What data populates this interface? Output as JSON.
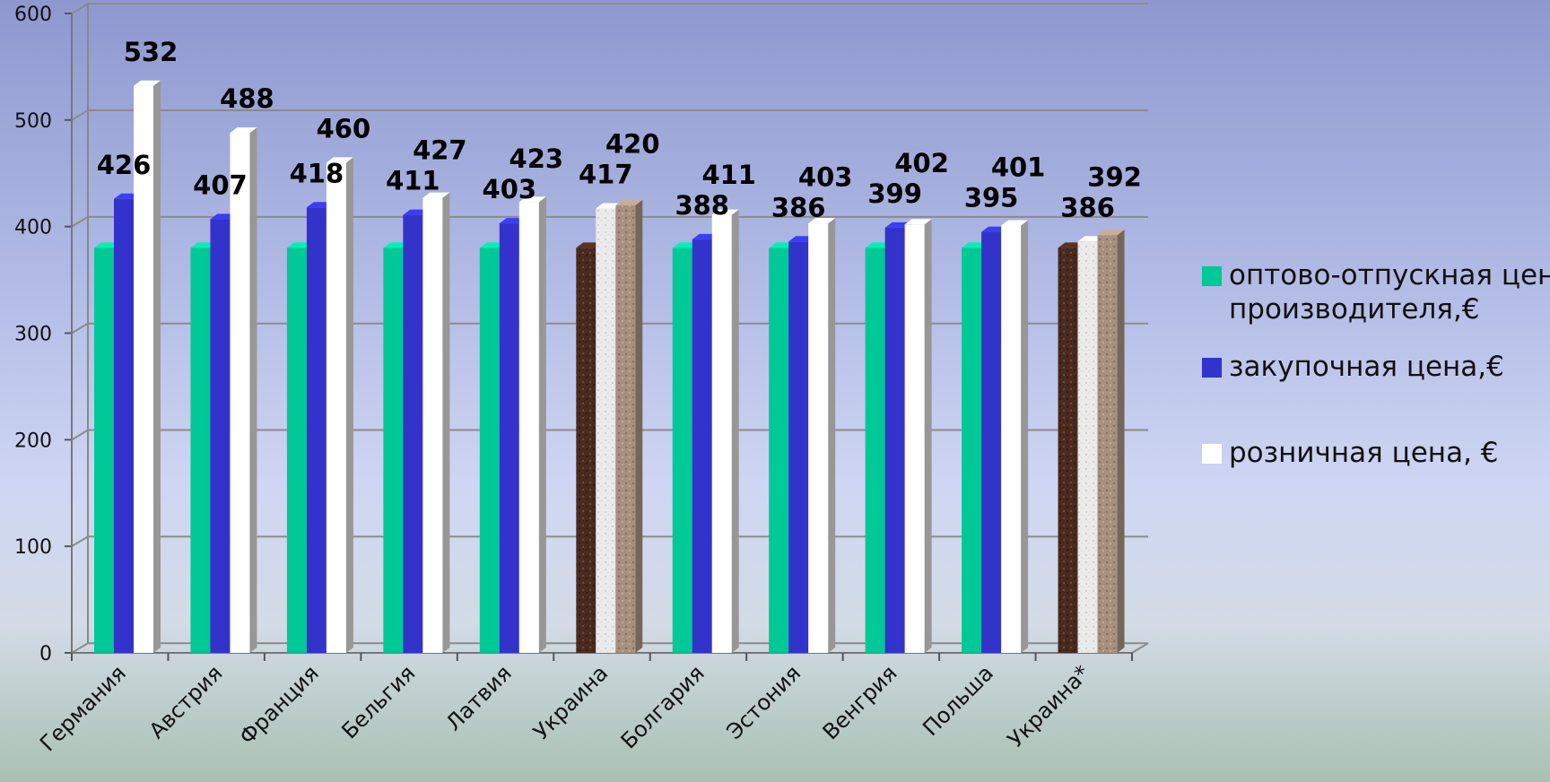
{
  "chart_data": {
    "type": "bar",
    "title": "",
    "xlabel": "",
    "ylabel": "",
    "ylim": [
      0,
      600
    ],
    "yticks": [
      "0",
      "100",
      "200",
      "300",
      "400",
      "500",
      "600"
    ],
    "grid": true,
    "legend_position": "right",
    "categories": [
      "Германия",
      "Австрия",
      "Франция",
      "Бельгия",
      "Латвия",
      "Украина",
      "Болгария",
      "Эстония",
      "Венгрия",
      "Польша",
      "Украина*"
    ],
    "series": [
      {
        "name": "оптово-отпускная цена производителя,€",
        "values": [
          380,
          380,
          380,
          380,
          380,
          380,
          380,
          380,
          380,
          380,
          380
        ],
        "labels": [
          null,
          null,
          null,
          null,
          null,
          null,
          null,
          null,
          null,
          null,
          null
        ],
        "color": "#00c896",
        "highlight_color": "#4a2a1e"
      },
      {
        "name": "закупочная цена,€",
        "values": [
          426,
          407,
          418,
          411,
          403,
          417,
          388,
          386,
          399,
          395,
          386
        ],
        "labels": [
          "426",
          "407",
          "418",
          "411",
          "403",
          "417",
          "388",
          "386",
          "399",
          "395",
          "386"
        ],
        "color": "#3333cc",
        "highlight_color": "#ebebeb"
      },
      {
        "name": "розничная цена, €",
        "values": [
          532,
          488,
          460,
          427,
          423,
          420,
          411,
          403,
          402,
          401,
          392
        ],
        "labels": [
          "532",
          "488",
          "460",
          "427",
          "423",
          "420",
          "411",
          "403",
          "402",
          "401",
          "392"
        ],
        "color": "#ffffff",
        "highlight_color": "#a8907e"
      }
    ],
    "highlight_categories": [
      "Украина",
      "Украина*"
    ]
  },
  "legend": {
    "items": [
      {
        "line1": "оптово-отпускная цена",
        "line2": "производителя,€",
        "color": "#00c896"
      },
      {
        "line1": "закупочная цена,€",
        "line2": "",
        "color": "#3333cc"
      },
      {
        "line1": "розничная цена, €",
        "line2": "",
        "color": "#ffffff"
      }
    ]
  }
}
